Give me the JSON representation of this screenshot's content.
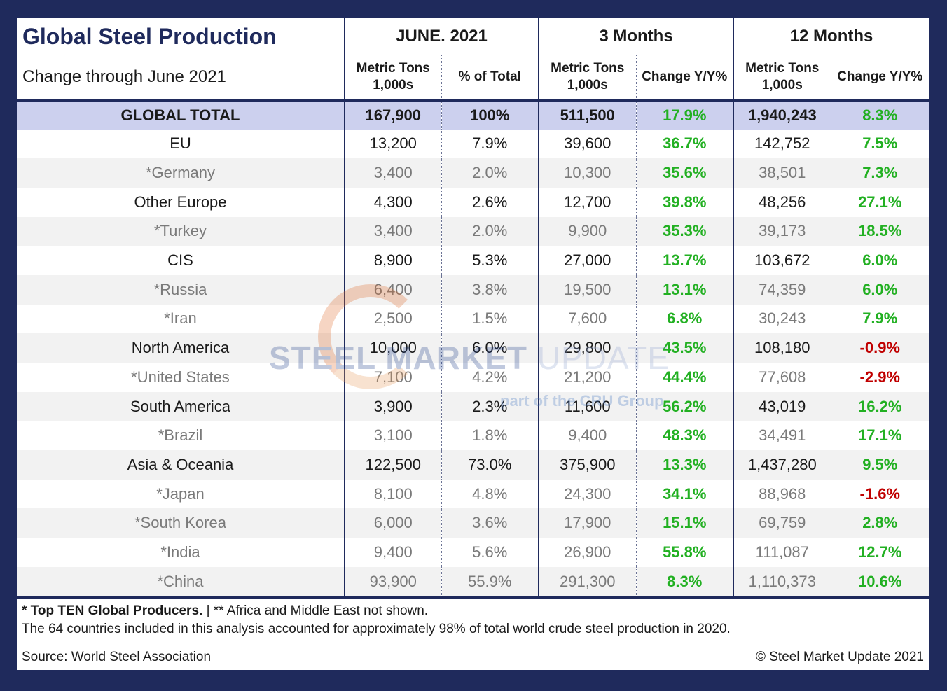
{
  "header": {
    "title": "Global Steel Production",
    "subtitle": "Change through June 2021",
    "groups": [
      "JUNE. 2021",
      "3 Months",
      "12 Months"
    ],
    "subcols": [
      "Metric Tons 1,000s",
      "% of Total",
      "Metric Tons 1,000s",
      "Change Y/Y%",
      "Metric Tons 1,000s",
      "Change Y/Y%"
    ]
  },
  "rows": [
    {
      "name": "GLOBAL TOTAL",
      "kind": "total",
      "june_tons": "167,900",
      "june_pct": "100%",
      "m3_tons": "511,500",
      "m3_chg": "17.9%",
      "m12_tons": "1,940,243",
      "m12_chg": "8.3%"
    },
    {
      "name": "EU",
      "kind": "region",
      "june_tons": "13,200",
      "june_pct": "7.9%",
      "m3_tons": "39,600",
      "m3_chg": "36.7%",
      "m12_tons": "142,752",
      "m12_chg": "7.5%"
    },
    {
      "name": "*Germany",
      "kind": "country",
      "june_tons": "3,400",
      "june_pct": "2.0%",
      "m3_tons": "10,300",
      "m3_chg": "35.6%",
      "m12_tons": "38,501",
      "m12_chg": "7.3%"
    },
    {
      "name": "Other Europe",
      "kind": "region",
      "june_tons": "4,300",
      "june_pct": "2.6%",
      "m3_tons": "12,700",
      "m3_chg": "39.8%",
      "m12_tons": "48,256",
      "m12_chg": "27.1%"
    },
    {
      "name": "*Turkey",
      "kind": "country",
      "june_tons": "3,400",
      "june_pct": "2.0%",
      "m3_tons": "9,900",
      "m3_chg": "35.3%",
      "m12_tons": "39,173",
      "m12_chg": "18.5%"
    },
    {
      "name": "CIS",
      "kind": "region",
      "june_tons": "8,900",
      "june_pct": "5.3%",
      "m3_tons": "27,000",
      "m3_chg": "13.7%",
      "m12_tons": "103,672",
      "m12_chg": "6.0%"
    },
    {
      "name": "*Russia",
      "kind": "country",
      "june_tons": "6,400",
      "june_pct": "3.8%",
      "m3_tons": "19,500",
      "m3_chg": "13.1%",
      "m12_tons": "74,359",
      "m12_chg": "6.0%"
    },
    {
      "name": "*Iran",
      "kind": "country",
      "june_tons": "2,500",
      "june_pct": "1.5%",
      "m3_tons": "7,600",
      "m3_chg": "6.8%",
      "m12_tons": "30,243",
      "m12_chg": "7.9%"
    },
    {
      "name": "North America",
      "kind": "region",
      "june_tons": "10,000",
      "june_pct": "6.0%",
      "m3_tons": "29,800",
      "m3_chg": "43.5%",
      "m12_tons": "108,180",
      "m12_chg": "-0.9%"
    },
    {
      "name": "*United States",
      "kind": "country",
      "june_tons": "7,100",
      "june_pct": "4.2%",
      "m3_tons": "21,200",
      "m3_chg": "44.4%",
      "m12_tons": "77,608",
      "m12_chg": "-2.9%"
    },
    {
      "name": "South America",
      "kind": "region",
      "june_tons": "3,900",
      "june_pct": "2.3%",
      "m3_tons": "11,600",
      "m3_chg": "56.2%",
      "m12_tons": "43,019",
      "m12_chg": "16.2%"
    },
    {
      "name": "*Brazil",
      "kind": "country",
      "june_tons": "3,100",
      "june_pct": "1.8%",
      "m3_tons": "9,400",
      "m3_chg": "48.3%",
      "m12_tons": "34,491",
      "m12_chg": "17.1%"
    },
    {
      "name": "Asia & Oceania",
      "kind": "region",
      "june_tons": "122,500",
      "june_pct": "73.0%",
      "m3_tons": "375,900",
      "m3_chg": "13.3%",
      "m12_tons": "1,437,280",
      "m12_chg": "9.5%"
    },
    {
      "name": "*Japan",
      "kind": "country",
      "june_tons": "8,100",
      "june_pct": "4.8%",
      "m3_tons": "24,300",
      "m3_chg": "34.1%",
      "m12_tons": "88,968",
      "m12_chg": "-1.6%"
    },
    {
      "name": "*South Korea",
      "kind": "country",
      "june_tons": "6,000",
      "june_pct": "3.6%",
      "m3_tons": "17,900",
      "m3_chg": "15.1%",
      "m12_tons": "69,759",
      "m12_chg": "2.8%"
    },
    {
      "name": "*India",
      "kind": "country",
      "june_tons": "9,400",
      "june_pct": "5.6%",
      "m3_tons": "26,900",
      "m3_chg": "55.8%",
      "m12_tons": "111,087",
      "m12_chg": "12.7%"
    },
    {
      "name": "*China",
      "kind": "country",
      "june_tons": "93,900",
      "june_pct": "55.9%",
      "m3_tons": "291,300",
      "m3_chg": "8.3%",
      "m12_tons": "1,110,373",
      "m12_chg": "10.6%"
    }
  ],
  "footnotes": {
    "top_ten": "* Top TEN Global Producers.",
    "not_shown": " | ** Africa and Middle East not shown.",
    "coverage": "The 64 countries included in this analysis accounted for approximately 98% of total world crude steel production in 2020.",
    "source": "Source: World Steel Association",
    "copyright": "© Steel Market Update 2021"
  },
  "watermark": {
    "brand_bold": "STEEL MARKET",
    "brand_light": " UPDATE",
    "tagline": "part of the CRU Group"
  },
  "colors": {
    "frame": "#1f2a5c",
    "total_band": "#ccd0ee",
    "positive": "#22b022",
    "negative": "#c00000",
    "country_text": "#7a7a7a"
  }
}
